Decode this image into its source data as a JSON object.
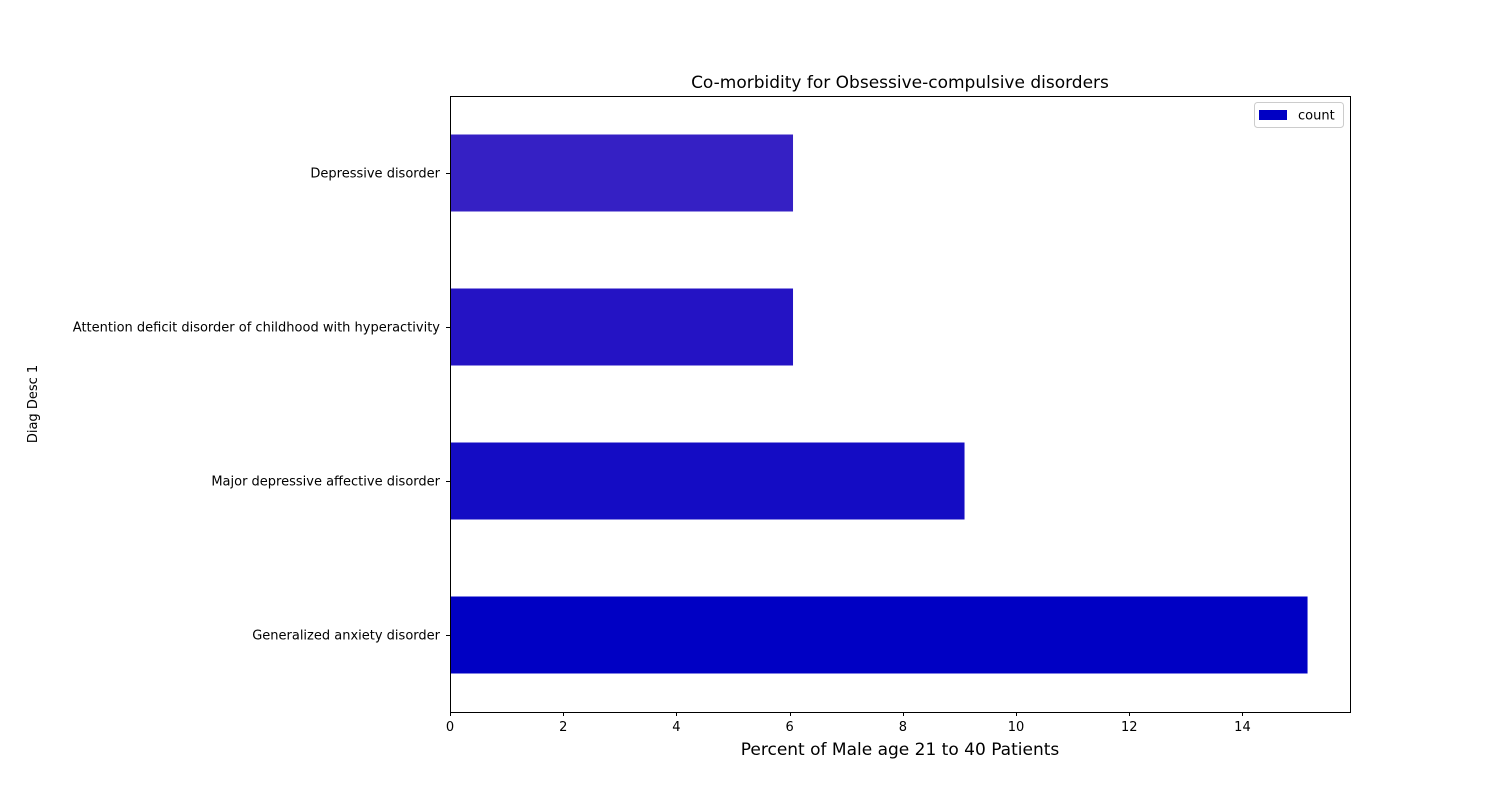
{
  "chart_data": {
    "type": "bar",
    "orientation": "horizontal",
    "title": "Co-morbidity for Obsessive-compulsive disorders",
    "xlabel": "Percent of Male age 21 to 40 Patients",
    "ylabel": "Diag Desc 1",
    "categories": [
      "Generalized anxiety disorder",
      "Major depressive affective disorder",
      "Attention deficit disorder of childhood with hyperactivity",
      "Depressive disorder"
    ],
    "series": [
      {
        "name": "count",
        "values": [
          15.15,
          9.09,
          6.06,
          6.06
        ],
        "colors": [
          "#0000c4",
          "#140cc4",
          "#2413c4",
          "#3520c4"
        ]
      }
    ],
    "xlim": [
      0,
      15.9
    ],
    "xticks": [
      0,
      2,
      4,
      6,
      8,
      10,
      12,
      14
    ],
    "grid": false,
    "legend_position": "top-right"
  }
}
